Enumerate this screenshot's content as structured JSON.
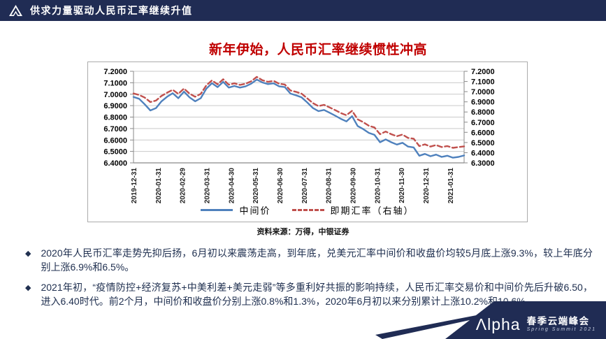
{
  "header": {
    "title": "供求力量驱动人民币汇率继续升值",
    "logo_icon": "alpha-triangle-logo"
  },
  "slide_title": "新年伊始，人民币汇率继续惯性冲高",
  "chart": {
    "source_note": "资料来源：万得，中银证券"
  },
  "chart_data": {
    "type": "line",
    "title": "新年伊始，人民币汇率继续惯性冲高",
    "x_tick_labels": [
      "2019-12-31",
      "2020-01-31",
      "2020-02-29",
      "2020-03-31",
      "2020-04-30",
      "2020-05-31",
      "2020-06-30",
      "2020-07-31",
      "2020-08-31",
      "2020-09-30",
      "2020-10-31",
      "2020-11-30",
      "2020-12-31",
      "2021-01-31"
    ],
    "left_ticks": [
      "7.2000",
      "7.1000",
      "7.0000",
      "6.9000",
      "6.8000",
      "6.7000",
      "6.6000",
      "6.5000",
      "6.4000"
    ],
    "right_ticks": [
      "7.2000",
      "7.1000",
      "7.0000",
      "6.9000",
      "6.8000",
      "6.7000",
      "6.6000",
      "6.5000",
      "6.4000",
      "6.3000"
    ],
    "left_ylim": [
      6.4,
      7.2
    ],
    "right_ylim": [
      6.3,
      7.2
    ],
    "grid": "horizontal",
    "legend_position": "bottom",
    "series": [
      {
        "name": "中间价",
        "axis": "left",
        "color": "#4F81BD",
        "dash": null,
        "values": [
          6.976,
          6.96,
          6.912,
          6.858,
          6.878,
          6.938,
          6.978,
          7.008,
          6.965,
          7.022,
          6.972,
          6.938,
          6.965,
          7.048,
          7.096,
          7.062,
          7.108,
          7.058,
          7.072,
          7.058,
          7.068,
          7.092,
          7.128,
          7.102,
          7.088,
          7.095,
          7.068,
          7.062,
          7.005,
          6.99,
          6.972,
          6.928,
          6.88,
          6.852,
          6.862,
          6.838,
          6.812,
          6.785,
          6.762,
          6.808,
          6.722,
          6.695,
          6.662,
          6.645,
          6.58,
          6.605,
          6.58,
          6.56,
          6.575,
          6.542,
          6.535,
          6.462,
          6.478,
          6.458,
          6.472,
          6.452,
          6.462,
          6.445,
          6.452,
          6.465
        ]
      },
      {
        "name": "即期汇率（右轴）",
        "axis": "right",
        "color": "#C0504D",
        "dash": "7 4",
        "values": [
          6.982,
          6.968,
          6.942,
          6.898,
          6.912,
          6.958,
          6.99,
          7.018,
          6.978,
          7.03,
          6.98,
          6.95,
          6.978,
          7.062,
          7.11,
          7.072,
          7.122,
          7.068,
          7.082,
          7.066,
          7.078,
          7.102,
          7.145,
          7.112,
          7.096,
          7.106,
          7.078,
          7.07,
          7.012,
          6.998,
          6.98,
          6.935,
          6.888,
          6.858,
          6.87,
          6.845,
          6.818,
          6.79,
          6.768,
          6.812,
          6.728,
          6.7,
          6.665,
          6.648,
          6.582,
          6.608,
          6.582,
          6.562,
          6.578,
          6.545,
          6.538,
          6.465,
          6.482,
          6.46,
          6.475,
          6.455,
          6.465,
          6.448,
          6.455,
          6.462
        ]
      }
    ]
  },
  "bullets": [
    {
      "marker": "◆",
      "text": "2020年人民币汇率走势先抑后扬，6月初以来震荡走高，到年底，兑美元汇率中间价和收盘价均较5月底上涨9.3%，较上年底分别上涨6.9%和6.5%。"
    },
    {
      "marker": "◆",
      "text": "2021年初，“疫情防控+经济复苏+中美利差+美元走弱”等多重利好共振的影响持续，人民币汇率交易价和中间价先后升破6.50，进入6.40时代。前2个月，中间价和收盘价分别上涨0.8%和1.3%，2020年6月初以来分别累计上涨10.2%和10.6%。"
    }
  ],
  "footer": {
    "brand_a": "Λ",
    "brand_rest": "lpha",
    "event_cn": "春季云端峰会",
    "event_en": "Spring Summit 2021"
  },
  "colors": {
    "navy": "#202c54",
    "title_red": "#c00000",
    "line_blue": "#4F81BD",
    "line_red": "#C0504D",
    "bullet_text": "#203050"
  }
}
